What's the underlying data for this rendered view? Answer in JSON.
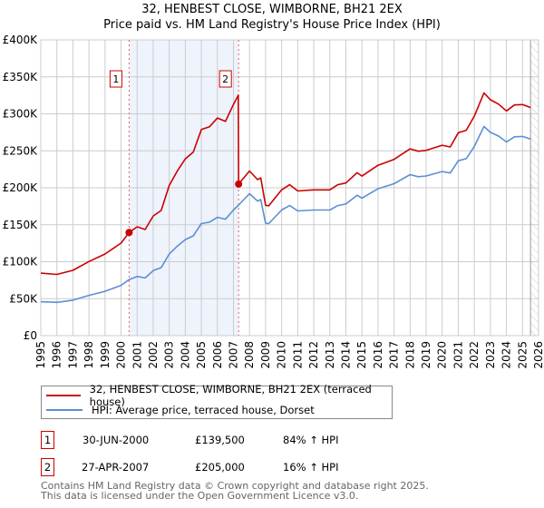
{
  "title_line1": "32, HENBEST CLOSE, WIMBORNE, BH21 2EX",
  "title_line2": "Price paid vs. HM Land Registry's House Price Index (HPI)",
  "chart_data": {
    "type": "line",
    "xlim": [
      1995,
      2026
    ],
    "ylim": [
      0,
      400000
    ],
    "x_ticks": [
      1995,
      1996,
      1997,
      1998,
      1999,
      2000,
      2001,
      2002,
      2003,
      2004,
      2005,
      2006,
      2007,
      2008,
      2009,
      2010,
      2011,
      2012,
      2013,
      2014,
      2015,
      2016,
      2017,
      2018,
      2019,
      2020,
      2021,
      2022,
      2023,
      2024,
      2025,
      2026
    ],
    "y_ticks": [
      0,
      50000,
      100000,
      150000,
      200000,
      250000,
      300000,
      350000,
      400000
    ],
    "y_tick_labels": [
      "£0",
      "£50K",
      "£100K",
      "£150K",
      "£200K",
      "£250K",
      "£300K",
      "£350K",
      "£400K"
    ],
    "grid": true,
    "shaded_span": [
      2000.5,
      2007.32
    ],
    "future_hatch_from": 2025.5,
    "series": [
      {
        "name": "32, HENBEST CLOSE, WIMBORNE, BH21 2EX (terraced house)",
        "color": "#cc0000",
        "x": [
          1995,
          1996,
          1997,
          1998,
          1999,
          2000,
          2000.5,
          2001,
          2001.5,
          2002,
          2002.5,
          2003,
          2003.5,
          2004,
          2004.5,
          2005,
          2005.5,
          2006,
          2006.5,
          2007,
          2007.3,
          2007.32,
          2008,
          2008.5,
          2008.7,
          2009,
          2009.2,
          2010,
          2010.5,
          2011,
          2012,
          2013,
          2013.5,
          2014,
          2014.7,
          2015,
          2016,
          2017,
          2018,
          2018.5,
          2019,
          2020,
          2020.5,
          2021,
          2021.5,
          2022,
          2022.6,
          2023,
          2023.5,
          2024,
          2024.5,
          2025,
          2025.5
        ],
        "values": [
          84500,
          82800,
          88300,
          100300,
          110400,
          125100,
          139500,
          147200,
          143500,
          161900,
          169300,
          203300,
          222600,
          239200,
          248400,
          278800,
          282400,
          294400,
          289800,
          312800,
          325100,
          205000,
          222700,
          211100,
          213400,
          176300,
          175700,
          197200,
          204200,
          195700,
          197200,
          197200,
          204200,
          206500,
          220400,
          215800,
          230400,
          238400,
          252600,
          249400,
          250600,
          257500,
          255200,
          274500,
          277800,
          297000,
          328300,
          319000,
          313200,
          303900,
          312000,
          312500,
          308600
        ]
      },
      {
        "name": "HPI: Average price, terraced house, Dorset",
        "color": "#5b8fd4",
        "x": [
          1995,
          1996,
          1997,
          1998,
          1999,
          2000,
          2000.5,
          2001,
          2001.5,
          2002,
          2002.5,
          2003,
          2003.5,
          2004,
          2004.5,
          2005,
          2005.5,
          2006,
          2006.5,
          2007,
          2007.32,
          2008,
          2008.5,
          2008.7,
          2009,
          2009.2,
          2010,
          2010.5,
          2011,
          2012,
          2013,
          2013.5,
          2014,
          2014.7,
          2015,
          2016,
          2017,
          2018,
          2018.5,
          2019,
          2020,
          2020.5,
          2021,
          2021.5,
          2022,
          2022.6,
          2023,
          2023.5,
          2024,
          2024.5,
          2025,
          2025.5
        ],
        "values": [
          45900,
          45000,
          48000,
          54500,
          60000,
          68000,
          75800,
          80000,
          78000,
          88000,
          92000,
          110500,
          121000,
          130000,
          135000,
          151500,
          153500,
          160000,
          157500,
          170000,
          176700,
          192000,
          182000,
          184000,
          152000,
          151500,
          170000,
          176000,
          168700,
          170000,
          170000,
          176000,
          178000,
          190000,
          186000,
          198600,
          205500,
          217800,
          215000,
          216000,
          222000,
          220000,
          236600,
          239500,
          256000,
          283000,
          275000,
          270000,
          262000,
          269000,
          269400,
          266000
        ]
      }
    ],
    "sales": [
      {
        "id": "1",
        "x": 2000.5,
        "value": 139500,
        "date": "30-JUN-2000",
        "price": "£139,500",
        "hpi": "84% ↑ HPI"
      },
      {
        "id": "2",
        "x": 2007.32,
        "value": 205000,
        "date": "27-APR-2007",
        "price": "£205,000",
        "hpi": "16% ↑ HPI"
      }
    ]
  },
  "footer_line1": "Contains HM Land Registry data © Crown copyright and database right 2025.",
  "footer_line2": "This data is licensed under the Open Government Licence v3.0."
}
